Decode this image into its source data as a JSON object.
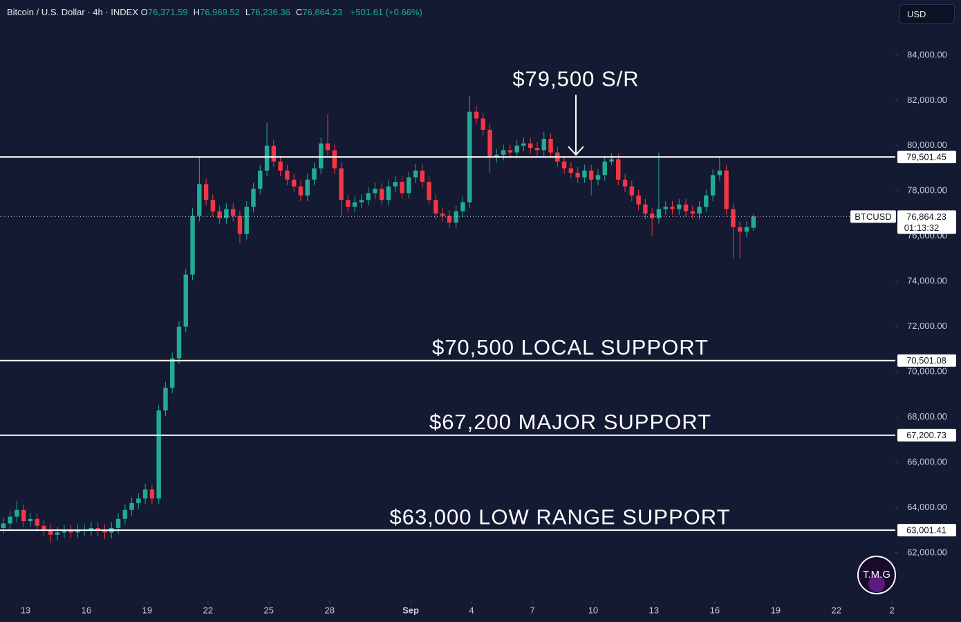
{
  "chart_data": {
    "type": "candlestick",
    "title": "Bitcoin / U.S. Dollar · 4h · INDEX",
    "ohlc_legend": [
      {
        "key": "O",
        "text": "76,371.59"
      },
      {
        "key": "H",
        "text": "76,969.52"
      },
      {
        "key": "L",
        "text": "76,236.36"
      },
      {
        "key": "C",
        "text": "76,864.23"
      }
    ],
    "change": "+501.61 (+0.66%)",
    "currency": "USD",
    "up_color": "#22ab94",
    "down_color": "#f23645",
    "open": [
      63100,
      63300,
      63600,
      63900,
      63400,
      63500,
      63200,
      63000,
      62800,
      62900,
      63000,
      62900,
      63000,
      63000,
      63100,
      63000,
      62900,
      63100,
      63500,
      63900,
      64200,
      64400,
      64800,
      64400,
      68300,
      69300,
      70600,
      72000,
      74300,
      76900,
      78300,
      77600,
      77100,
      76800,
      77200,
      76900,
      76100,
      77300,
      78100,
      78900,
      80000,
      79300,
      78900,
      78500,
      78200,
      77800,
      78500,
      79000,
      80100,
      79800,
      79000,
      77600,
      77300,
      77500,
      77600,
      77900,
      78100,
      77600,
      78200,
      78400,
      77900,
      78600,
      78900,
      78400,
      77600,
      77000,
      76900,
      76600,
      77100,
      77500,
      81500,
      81200,
      80700,
      79500,
      79600,
      79800,
      79700,
      80000,
      80100,
      79900,
      79800,
      80300,
      79700,
      79300,
      79000,
      78800,
      78600,
      78900,
      78500,
      78700,
      79300,
      79400,
      78500,
      78200,
      77800,
      77400,
      77000,
      76800,
      77200,
      77300,
      77200,
      77400,
      77100,
      77000,
      77300,
      77800,
      78700,
      78900,
      77200,
      76400,
      76200,
      76371.59
    ],
    "high": [
      63550,
      63850,
      64300,
      64150,
      63750,
      63750,
      63450,
      63250,
      63150,
      63250,
      63250,
      63250,
      63250,
      63350,
      63350,
      63250,
      63350,
      63750,
      64150,
      64450,
      64650,
      65050,
      65000,
      68550,
      69550,
      70850,
      72250,
      74550,
      77250,
      79500,
      78550,
      77850,
      77350,
      77450,
      77450,
      77150,
      77550,
      78350,
      79150,
      81000,
      80250,
      79550,
      79150,
      78750,
      78450,
      78750,
      79250,
      80350,
      81400,
      80050,
      79250,
      77850,
      77750,
      77850,
      78150,
      78350,
      78350,
      78450,
      78650,
      78650,
      78850,
      79200,
      79150,
      78650,
      77850,
      77250,
      77150,
      77350,
      77750,
      82200,
      81750,
      81450,
      80950,
      79850,
      80050,
      80050,
      80250,
      80350,
      80350,
      80150,
      80600,
      80550,
      79950,
      79550,
      79250,
      79050,
      79150,
      79150,
      78950,
      79550,
      79650,
      79650,
      78750,
      78450,
      78050,
      77650,
      77250,
      79700,
      77550,
      77550,
      77650,
      77650,
      77350,
      77550,
      78050,
      78950,
      79500,
      79150,
      77450,
      76650,
      76650,
      76969.52
    ],
    "low": [
      62850,
      63050,
      63350,
      63150,
      63150,
      62950,
      62750,
      62450,
      62550,
      62650,
      62650,
      62650,
      62750,
      62750,
      62750,
      62600,
      62650,
      62850,
      63250,
      63650,
      63950,
      64150,
      64150,
      64150,
      68050,
      69050,
      70350,
      71750,
      74050,
      76650,
      77350,
      76850,
      76550,
      76550,
      76650,
      75700,
      75850,
      77050,
      77850,
      78650,
      79050,
      78650,
      78250,
      77950,
      77550,
      77550,
      78250,
      78750,
      79550,
      78750,
      76900,
      77050,
      77050,
      77250,
      77350,
      77650,
      77350,
      77350,
      77950,
      77650,
      77650,
      78350,
      78150,
      77350,
      76750,
      76650,
      76350,
      76350,
      76850,
      77250,
      80950,
      80450,
      78800,
      79250,
      79350,
      79450,
      79450,
      79750,
      79650,
      79550,
      79550,
      79450,
      79050,
      78750,
      78550,
      78350,
      78350,
      77800,
      78250,
      78450,
      79150,
      78250,
      77950,
      77550,
      77150,
      76750,
      76000,
      76550,
      76950,
      76950,
      76950,
      76850,
      76750,
      76750,
      77050,
      77550,
      78450,
      76950,
      75000,
      75000,
      75950,
      76236.36
    ],
    "close": [
      63300,
      63600,
      63900,
      63400,
      63500,
      63200,
      63000,
      62800,
      62900,
      63000,
      62900,
      63000,
      63000,
      63100,
      63000,
      62900,
      63100,
      63500,
      63900,
      64200,
      64400,
      64800,
      64400,
      68300,
      69300,
      70600,
      72000,
      74300,
      76900,
      78300,
      77600,
      77100,
      76800,
      77200,
      76900,
      76100,
      77300,
      78100,
      78900,
      80000,
      79300,
      78900,
      78500,
      78200,
      77800,
      78500,
      79000,
      80100,
      79800,
      79000,
      77600,
      77300,
      77500,
      77600,
      77900,
      78100,
      77600,
      78200,
      78400,
      77900,
      78600,
      78900,
      78400,
      77600,
      77000,
      76900,
      76600,
      77100,
      77500,
      81500,
      81200,
      80700,
      79500,
      79600,
      79800,
      79700,
      80000,
      80100,
      79900,
      79800,
      80300,
      79700,
      79300,
      79000,
      78800,
      78600,
      78900,
      78500,
      78700,
      79300,
      79400,
      78500,
      78200,
      77800,
      77400,
      77000,
      76800,
      77200,
      77300,
      77200,
      77400,
      77100,
      77000,
      77300,
      77800,
      78700,
      78900,
      77200,
      76400,
      76200,
      76400,
      76864.23
    ],
    "xlim": [
      0,
      132.5
    ],
    "xticks": [
      {
        "value": 3.78,
        "label": "13"
      },
      {
        "value": 12.78,
        "label": "16"
      },
      {
        "value": 21.78,
        "label": "19"
      },
      {
        "value": 30.78,
        "label": "22"
      },
      {
        "value": 39.78,
        "label": "25"
      },
      {
        "value": 48.78,
        "label": "28"
      },
      {
        "value": 60.78,
        "label": "Sep"
      },
      {
        "value": 69.78,
        "label": "4"
      },
      {
        "value": 78.78,
        "label": "7"
      },
      {
        "value": 87.78,
        "label": "10"
      },
      {
        "value": 96.78,
        "label": "13"
      },
      {
        "value": 105.78,
        "label": "16"
      },
      {
        "value": 114.78,
        "label": "19"
      },
      {
        "value": 123.78,
        "label": "22"
      },
      {
        "value": 132.0,
        "label": "2"
      }
    ],
    "ylim": [
      59860,
      86440
    ],
    "yticks": [
      {
        "value": 62000,
        "label": "62,000.00"
      },
      {
        "value": 64000,
        "label": "64,000.00"
      },
      {
        "value": 66000,
        "label": "66,000.00"
      },
      {
        "value": 68000,
        "label": "68,000.00"
      },
      {
        "value": 70000,
        "label": "70,000.00"
      },
      {
        "value": 72000,
        "label": "72,000.00"
      },
      {
        "value": 74000,
        "label": "74,000.00"
      },
      {
        "value": 76000,
        "label": "76,000.00"
      },
      {
        "value": 78000,
        "label": "78,000.00"
      },
      {
        "value": 80000,
        "label": "80,000.00"
      },
      {
        "value": 82000,
        "label": "82,000.00"
      },
      {
        "value": 84000,
        "label": "84,000.00"
      }
    ],
    "levels": [
      {
        "value": 79501.45,
        "label": "79,501.45",
        "annotation": "$79,500 S/R"
      },
      {
        "value": 70501.08,
        "label": "70,501.08",
        "annotation": "$70,500 LOCAL SUPPORT"
      },
      {
        "value": 67200.73,
        "label": "67,200.73",
        "annotation": "$67,200 MAJOR SUPPORT"
      },
      {
        "value": 63001.41,
        "label": "63,001.41",
        "annotation": "$63,000 LOW RANGE SUPPORT"
      }
    ],
    "last_price": {
      "value": 76864.23,
      "label": "76,864.23",
      "symbol": "BTCUSD",
      "countdown": "01:13:32"
    },
    "watermark": "T.M.G"
  }
}
